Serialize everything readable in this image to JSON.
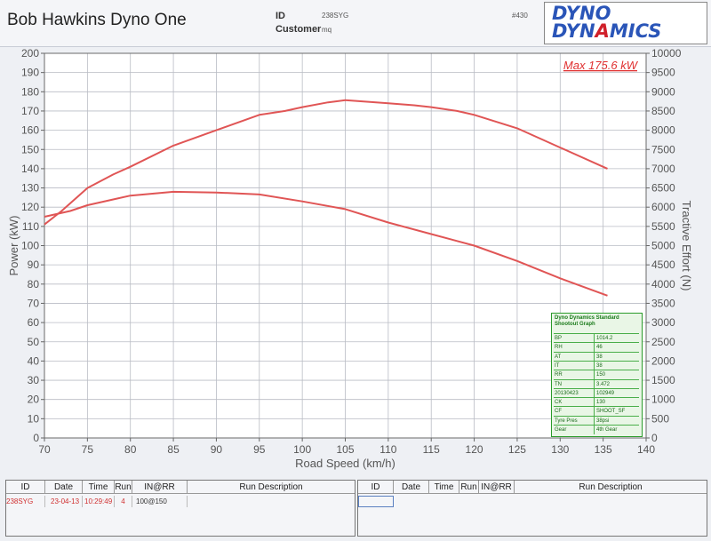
{
  "header": {
    "title": "Bob Hawkins Dyno One",
    "id_label": "ID",
    "id_value": "238SYG",
    "customer_label": "Customer",
    "customer_value": "mq",
    "run_no": "#430"
  },
  "logo": {
    "line1": "DYNO",
    "line2_a": "DYN",
    "line2_b": "A",
    "line2_c": "MICS"
  },
  "chart_data": {
    "type": "line",
    "xlabel": "Road Speed (km/h)",
    "ylabel": "Power (kW)",
    "y2label": "Tractive Effort (N)",
    "xlim": [
      70,
      140
    ],
    "ylim": [
      0,
      200
    ],
    "y2lim": [
      0,
      10000
    ],
    "x_ticks": [
      70,
      75,
      80,
      85,
      90,
      95,
      100,
      105,
      110,
      115,
      120,
      125,
      130,
      135,
      140
    ],
    "y_ticks": [
      0,
      10,
      20,
      30,
      40,
      50,
      60,
      70,
      80,
      90,
      100,
      110,
      120,
      130,
      140,
      150,
      160,
      170,
      180,
      190,
      200
    ],
    "y2_ticks": [
      0,
      500,
      1000,
      1500,
      2000,
      2500,
      3000,
      3500,
      4000,
      4500,
      5000,
      5500,
      6000,
      6500,
      7000,
      7500,
      8000,
      8500,
      9000,
      9500,
      10000
    ],
    "annotation": "Max 175.6 kW",
    "grid": true,
    "series": [
      {
        "axis": "left",
        "color": "#e05555",
        "x": [
          70,
          72,
          75,
          78,
          80,
          85,
          90,
          95,
          98,
          100,
          103,
          105,
          110,
          113,
          115,
          118,
          120,
          125,
          130,
          135.5
        ],
        "y": [
          111,
          118,
          130,
          137,
          141,
          152,
          160,
          168,
          170,
          172,
          174.5,
          175.6,
          174,
          173,
          172,
          170,
          168,
          161,
          151,
          140
        ]
      },
      {
        "axis": "right",
        "color": "#e05555",
        "x": [
          70,
          73,
          75,
          78,
          80,
          85,
          90,
          95,
          100,
          105,
          110,
          115,
          120,
          125,
          130,
          135.5
        ],
        "y": [
          5750,
          5900,
          6050,
          6200,
          6300,
          6400,
          6380,
          6330,
          6150,
          5950,
          5600,
          5300,
          5000,
          4600,
          4150,
          3700
        ]
      }
    ]
  },
  "legend": {
    "title": "Dyno Dynamics Standard Shootout Graph",
    "rows": [
      {
        "k": "BP",
        "v": "1014.2"
      },
      {
        "k": "RH",
        "v": "46"
      },
      {
        "k": "AT",
        "v": "38"
      },
      {
        "k": "IT",
        "v": "38"
      },
      {
        "k": "RR",
        "v": "150"
      },
      {
        "k": "TN",
        "v": "3.472"
      },
      {
        "k": "20130423",
        "v": "102949"
      },
      {
        "k": "CK",
        "v": "130"
      },
      {
        "k": "CF",
        "v": "SHOOT_SF"
      },
      {
        "k": "Tyre Pres",
        "v": "38psi"
      },
      {
        "k": "Gear",
        "v": "4th Gear"
      }
    ]
  },
  "table_left": {
    "headers": [
      "ID",
      "Date",
      "Time",
      "Run",
      "IN@RR",
      "Run Description"
    ],
    "row": [
      "238SYG",
      "23-04-13",
      "10:29:49",
      "4",
      "100@150",
      ""
    ]
  },
  "table_right": {
    "headers": [
      "ID",
      "Date",
      "Time",
      "Run",
      "IN@RR",
      "Run Description"
    ]
  }
}
